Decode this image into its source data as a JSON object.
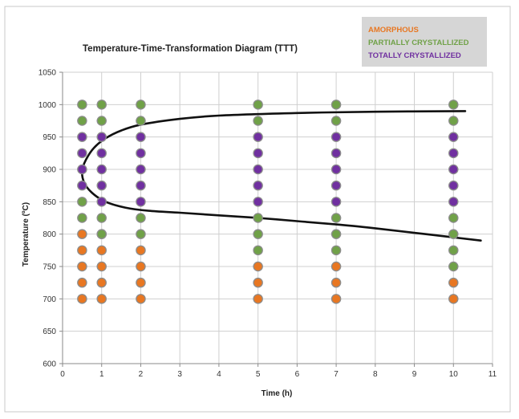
{
  "chart_data": {
    "type": "scatter",
    "title": "Temperature-Time-Transformation Diagram (TTT)",
    "xlabel": "Time (h)",
    "ylabel": "Temperature (ºC)",
    "xlim": [
      0,
      11
    ],
    "ylim": [
      600,
      1050
    ],
    "xticks": [
      0,
      1,
      2,
      3,
      4,
      5,
      6,
      7,
      8,
      9,
      10,
      11
    ],
    "yticks": [
      600,
      650,
      700,
      750,
      800,
      850,
      900,
      950,
      1000,
      1050
    ],
    "grid": true,
    "legend_position": "top-right",
    "colors": {
      "amorphous": "#e87722",
      "partially": "#70a148",
      "totally": "#7030a0",
      "marker_edge": "#8c8c8c",
      "curve": "#111111",
      "legend_bg": "#d6d6d6"
    },
    "legend": [
      {
        "label": "AMORPHOUS",
        "key": "amorphous"
      },
      {
        "label": "PARTIALLY CRYSTALLIZED",
        "key": "partially"
      },
      {
        "label": "TOTALLY CRYSTALLIZED",
        "key": "totally"
      }
    ],
    "series": [
      {
        "key": "amorphous",
        "points": [
          [
            0.5,
            700
          ],
          [
            0.5,
            725
          ],
          [
            0.5,
            750
          ],
          [
            0.5,
            775
          ],
          [
            0.5,
            800
          ],
          [
            1,
            700
          ],
          [
            1,
            725
          ],
          [
            1,
            750
          ],
          [
            1,
            775
          ],
          [
            1,
            800
          ],
          [
            2,
            700
          ],
          [
            2,
            725
          ],
          [
            2,
            750
          ],
          [
            2,
            775
          ],
          [
            5,
            700
          ],
          [
            5,
            725
          ],
          [
            5,
            750
          ],
          [
            7,
            700
          ],
          [
            7,
            725
          ],
          [
            7,
            750
          ],
          [
            10,
            700
          ],
          [
            10,
            725
          ]
        ]
      },
      {
        "key": "partially",
        "points": [
          [
            0.5,
            1000
          ],
          [
            0.5,
            975
          ],
          [
            0.5,
            850
          ],
          [
            0.5,
            825
          ],
          [
            1,
            1000
          ],
          [
            1,
            975
          ],
          [
            1,
            825
          ],
          [
            1,
            800
          ],
          [
            2,
            1000
          ],
          [
            2,
            975
          ],
          [
            2,
            825
          ],
          [
            2,
            800
          ],
          [
            5,
            1000
          ],
          [
            5,
            975
          ],
          [
            5,
            825
          ],
          [
            5,
            800
          ],
          [
            5,
            775
          ],
          [
            7,
            1000
          ],
          [
            7,
            975
          ],
          [
            7,
            825
          ],
          [
            7,
            800
          ],
          [
            7,
            775
          ],
          [
            10,
            1000
          ],
          [
            10,
            975
          ],
          [
            10,
            825
          ],
          [
            10,
            800
          ],
          [
            10,
            775
          ],
          [
            10,
            750
          ]
        ]
      },
      {
        "key": "totally",
        "points": [
          [
            0.5,
            950
          ],
          [
            0.5,
            925
          ],
          [
            0.5,
            900
          ],
          [
            0.5,
            875
          ],
          [
            1,
            950
          ],
          [
            1,
            925
          ],
          [
            1,
            900
          ],
          [
            1,
            875
          ],
          [
            1,
            850
          ],
          [
            2,
            950
          ],
          [
            2,
            925
          ],
          [
            2,
            900
          ],
          [
            2,
            875
          ],
          [
            2,
            850
          ],
          [
            5,
            950
          ],
          [
            5,
            925
          ],
          [
            5,
            900
          ],
          [
            5,
            875
          ],
          [
            5,
            850
          ],
          [
            7,
            950
          ],
          [
            7,
            925
          ],
          [
            7,
            900
          ],
          [
            7,
            875
          ],
          [
            7,
            850
          ],
          [
            10,
            950
          ],
          [
            10,
            925
          ],
          [
            10,
            900
          ],
          [
            10,
            875
          ],
          [
            10,
            850
          ]
        ]
      }
    ],
    "curve": [
      [
        10.3,
        990
      ],
      [
        8,
        989
      ],
      [
        6,
        987
      ],
      [
        4,
        983
      ],
      [
        3,
        978
      ],
      [
        2,
        969
      ],
      [
        1.5,
        960
      ],
      [
        1.1,
        948
      ],
      [
        0.8,
        933
      ],
      [
        0.6,
        915
      ],
      [
        0.5,
        898
      ],
      [
        0.55,
        880
      ],
      [
        0.75,
        864
      ],
      [
        1.1,
        850
      ],
      [
        1.6,
        841
      ],
      [
        2.2,
        836
      ],
      [
        3,
        833
      ],
      [
        4,
        829
      ],
      [
        5,
        825
      ],
      [
        6,
        820
      ],
      [
        7,
        815
      ],
      [
        8,
        809
      ],
      [
        9,
        802
      ],
      [
        10,
        795
      ],
      [
        10.7,
        790
      ]
    ]
  }
}
